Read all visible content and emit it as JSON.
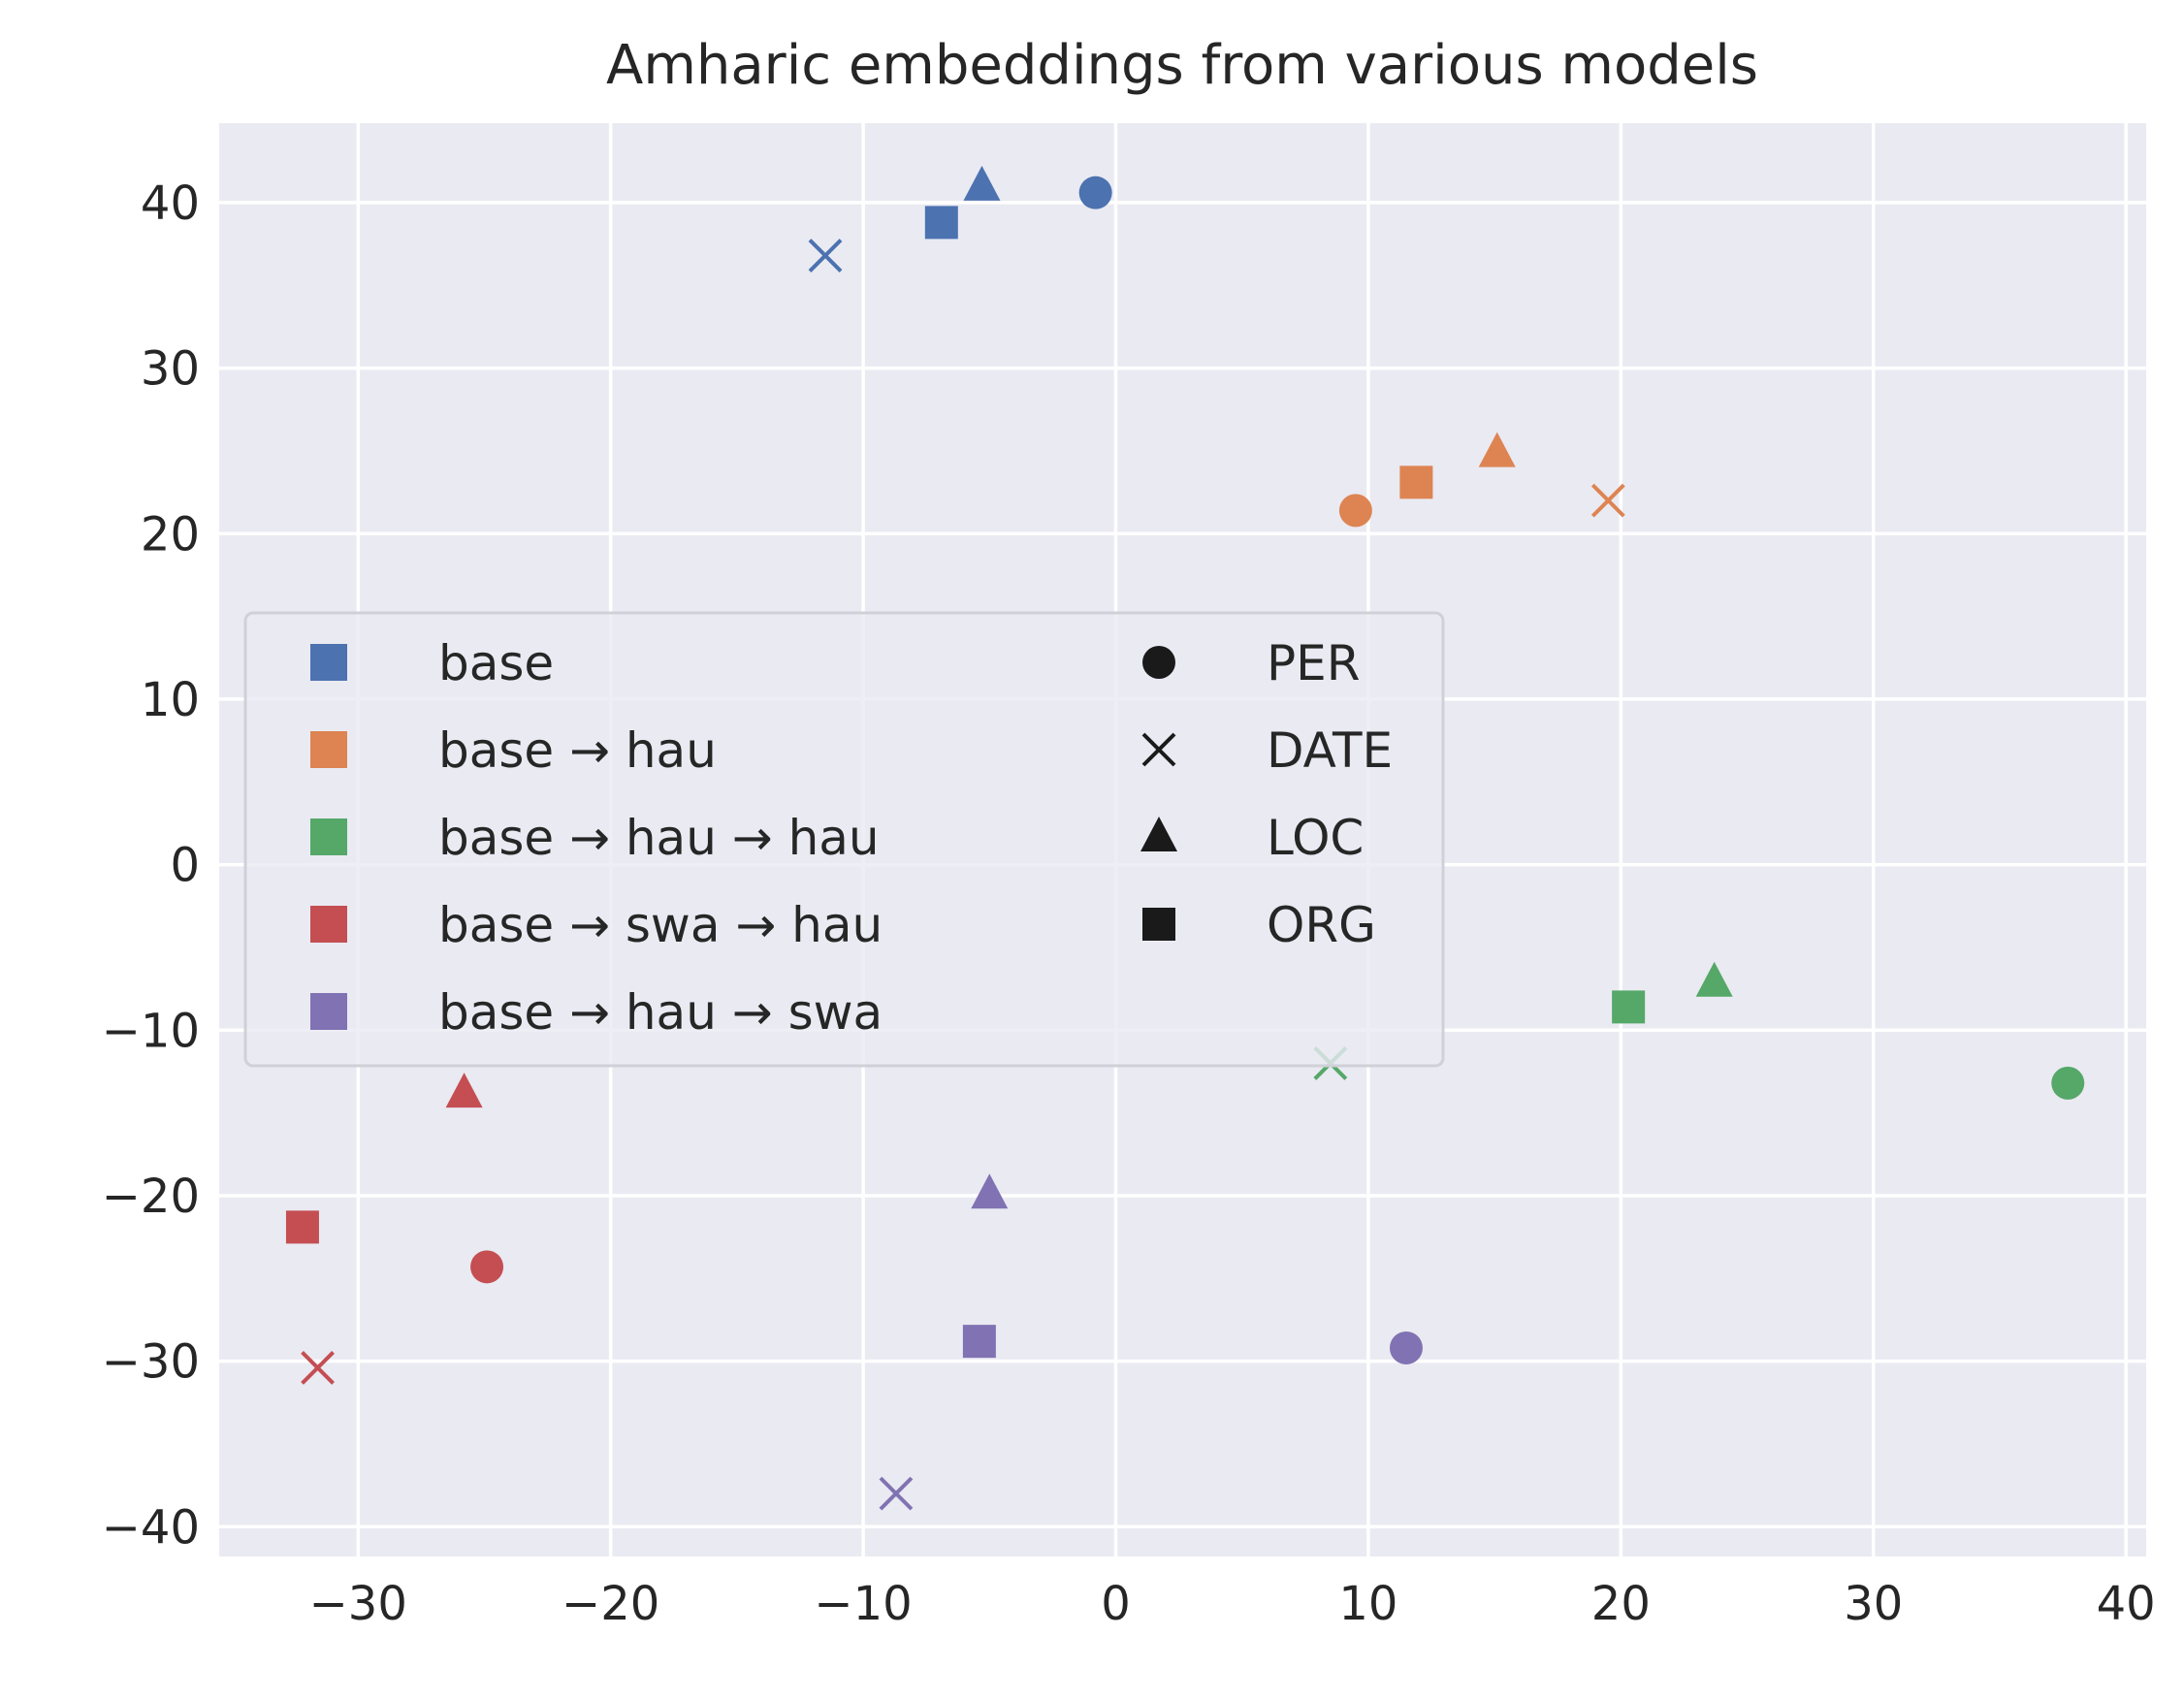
{
  "chart_data": {
    "type": "scatter",
    "title": "Amharic embeddings from various models",
    "xlabel": "",
    "ylabel": "",
    "xlim": [
      -35.5,
      40.8
    ],
    "ylim": [
      -41.8,
      44.8
    ],
    "xticks": [
      -30,
      -20,
      -10,
      0,
      10,
      20,
      30,
      40
    ],
    "yticks": [
      -40,
      -30,
      -20,
      -10,
      0,
      10,
      20,
      30,
      40
    ],
    "xtick_labels": [
      "−30",
      "−20",
      "−10",
      "0",
      "10",
      "20",
      "30",
      "40"
    ],
    "ytick_labels": [
      "−40",
      "−30",
      "−20",
      "−10",
      "0",
      "10",
      "20",
      "30",
      "40"
    ],
    "grid": true,
    "legend_position": "center-left",
    "series": [
      {
        "name": "base",
        "color": "#4c72b0",
        "points": [
          {
            "cat": "PER",
            "x": -0.8,
            "y": 40.6
          },
          {
            "cat": "DATE",
            "x": -11.5,
            "y": 36.8
          },
          {
            "cat": "LOC",
            "x": -5.3,
            "y": 41.0
          },
          {
            "cat": "ORG",
            "x": -6.9,
            "y": 38.8
          }
        ]
      },
      {
        "name": "base → hau",
        "color": "#dd8452",
        "points": [
          {
            "cat": "PER",
            "x": 9.5,
            "y": 21.4
          },
          {
            "cat": "DATE",
            "x": 19.5,
            "y": 22.0
          },
          {
            "cat": "LOC",
            "x": 15.1,
            "y": 24.9
          },
          {
            "cat": "ORG",
            "x": 11.9,
            "y": 23.1
          }
        ]
      },
      {
        "name": "base → hau → hau",
        "color": "#55a868",
        "points": [
          {
            "cat": "PER",
            "x": 37.7,
            "y": -13.2
          },
          {
            "cat": "DATE",
            "x": 8.5,
            "y": -12.0
          },
          {
            "cat": "LOC",
            "x": 23.7,
            "y": -7.1
          },
          {
            "cat": "ORG",
            "x": 20.3,
            "y": -8.6
          }
        ]
      },
      {
        "name": "base → swa → hau",
        "color": "#c44e52",
        "points": [
          {
            "cat": "PER",
            "x": -24.9,
            "y": -24.3
          },
          {
            "cat": "DATE",
            "x": -31.6,
            "y": -30.4
          },
          {
            "cat": "LOC",
            "x": -25.8,
            "y": -13.8
          },
          {
            "cat": "ORG",
            "x": -32.2,
            "y": -21.9
          }
        ]
      },
      {
        "name": "base → hau → swa",
        "color": "#8172b3",
        "points": [
          {
            "cat": "PER",
            "x": 11.5,
            "y": -29.2
          },
          {
            "cat": "DATE",
            "x": -8.7,
            "y": -38.0
          },
          {
            "cat": "LOC",
            "x": -5.0,
            "y": -19.9
          },
          {
            "cat": "ORG",
            "x": -5.4,
            "y": -28.8
          }
        ]
      }
    ],
    "marker_legend": [
      {
        "name": "PER",
        "marker": "circle"
      },
      {
        "name": "DATE",
        "marker": "x"
      },
      {
        "name": "LOC",
        "marker": "triangle"
      },
      {
        "name": "ORG",
        "marker": "square"
      }
    ]
  }
}
